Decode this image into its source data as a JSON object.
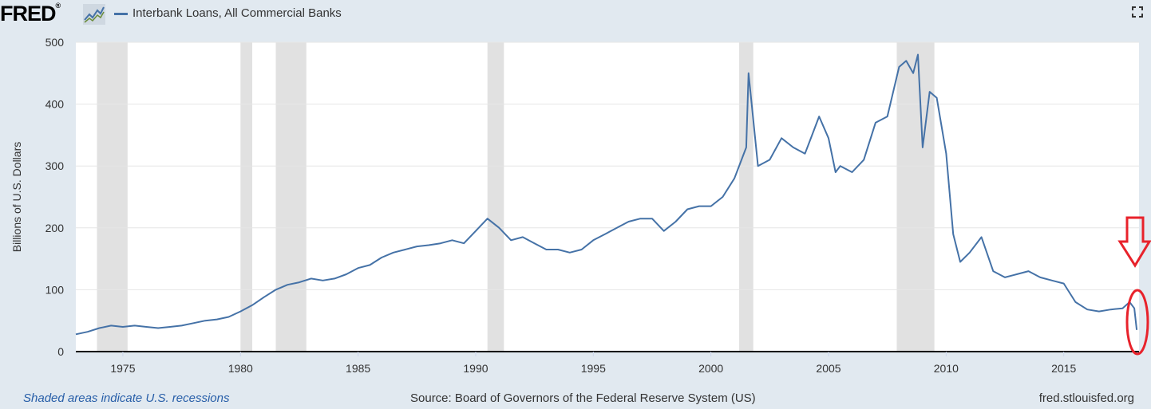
{
  "header": {
    "logo": "FRED",
    "logo_mark": "®",
    "series_title": "Interbank Loans, All Commercial Banks"
  },
  "footer": {
    "recession_note": "Shaded areas indicate U.S. recessions",
    "source": "Source: Board of Governors of the Federal Reserve System (US)",
    "site": "fred.stlouisfed.org"
  },
  "icons": {
    "logo_graph": "trend-graph-icon",
    "fullscreen": "fullscreen-icon",
    "annotation_arrow": "down-arrow-icon",
    "annotation_circle": "highlight-ellipse"
  },
  "colors": {
    "series": "#4572a7",
    "recession": "#e1e1e1",
    "background": "#e1e9f0",
    "plot_background": "#ffffff",
    "annotation": "#e8222b"
  },
  "chart_data": {
    "type": "line",
    "title": "",
    "xlabel": "",
    "ylabel": "Billions of U.S. Dollars",
    "ylim": [
      0,
      500
    ],
    "xlim": [
      1973.0,
      2018.2
    ],
    "y_ticks": [
      0,
      100,
      200,
      300,
      400,
      500
    ],
    "x_ticks": [
      1975,
      1980,
      1985,
      1990,
      1995,
      2000,
      2005,
      2010,
      2015
    ],
    "grid": true,
    "recessions": [
      [
        1973.9,
        1975.2
      ],
      [
        1980.0,
        1980.5
      ],
      [
        1981.5,
        1982.8
      ],
      [
        1990.5,
        1991.2
      ],
      [
        2001.2,
        2001.8
      ],
      [
        2007.9,
        2009.5
      ]
    ],
    "series": [
      {
        "name": "Interbank Loans, All Commercial Banks",
        "x": [
          1973.0,
          1973.5,
          1974.0,
          1974.5,
          1975.0,
          1975.5,
          1976.0,
          1976.5,
          1977.0,
          1977.5,
          1978.0,
          1978.5,
          1979.0,
          1979.5,
          1980.0,
          1980.5,
          1981.0,
          1981.5,
          1982.0,
          1982.5,
          1983.0,
          1983.5,
          1984.0,
          1984.5,
          1985.0,
          1985.5,
          1986.0,
          1986.5,
          1987.0,
          1987.5,
          1988.0,
          1988.5,
          1989.0,
          1989.5,
          1990.0,
          1990.5,
          1991.0,
          1991.5,
          1992.0,
          1992.5,
          1993.0,
          1993.5,
          1994.0,
          1994.5,
          1995.0,
          1995.5,
          1996.0,
          1996.5,
          1997.0,
          1997.5,
          1998.0,
          1998.5,
          1999.0,
          1999.5,
          2000.0,
          2000.5,
          2001.0,
          2001.3,
          2001.5,
          2001.6,
          2002.0,
          2002.5,
          2003.0,
          2003.5,
          2004.0,
          2004.3,
          2004.6,
          2005.0,
          2005.3,
          2005.5,
          2006.0,
          2006.5,
          2007.0,
          2007.5,
          2008.0,
          2008.3,
          2008.6,
          2008.8,
          2009.0,
          2009.3,
          2009.6,
          2010.0,
          2010.3,
          2010.6,
          2011.0,
          2011.5,
          2012.0,
          2012.5,
          2013.0,
          2013.5,
          2014.0,
          2014.5,
          2015.0,
          2015.5,
          2016.0,
          2016.5,
          2017.0,
          2017.5,
          2017.8,
          2018.0,
          2018.1
        ],
        "values": [
          28,
          32,
          38,
          42,
          40,
          42,
          40,
          38,
          40,
          42,
          46,
          50,
          52,
          56,
          65,
          75,
          88,
          100,
          108,
          112,
          118,
          115,
          118,
          125,
          135,
          140,
          152,
          160,
          165,
          170,
          172,
          175,
          180,
          175,
          195,
          215,
          200,
          180,
          185,
          175,
          165,
          165,
          160,
          165,
          180,
          190,
          200,
          210,
          215,
          215,
          195,
          210,
          230,
          235,
          235,
          250,
          280,
          310,
          330,
          450,
          300,
          310,
          345,
          330,
          320,
          350,
          380,
          345,
          290,
          300,
          290,
          310,
          370,
          380,
          460,
          470,
          450,
          480,
          330,
          420,
          410,
          320,
          190,
          145,
          160,
          185,
          130,
          120,
          125,
          130,
          120,
          115,
          110,
          80,
          68,
          65,
          68,
          70,
          80,
          70,
          35
        ]
      }
    ],
    "annotations": [
      "red down arrow",
      "red circle highlighting final decline"
    ]
  }
}
